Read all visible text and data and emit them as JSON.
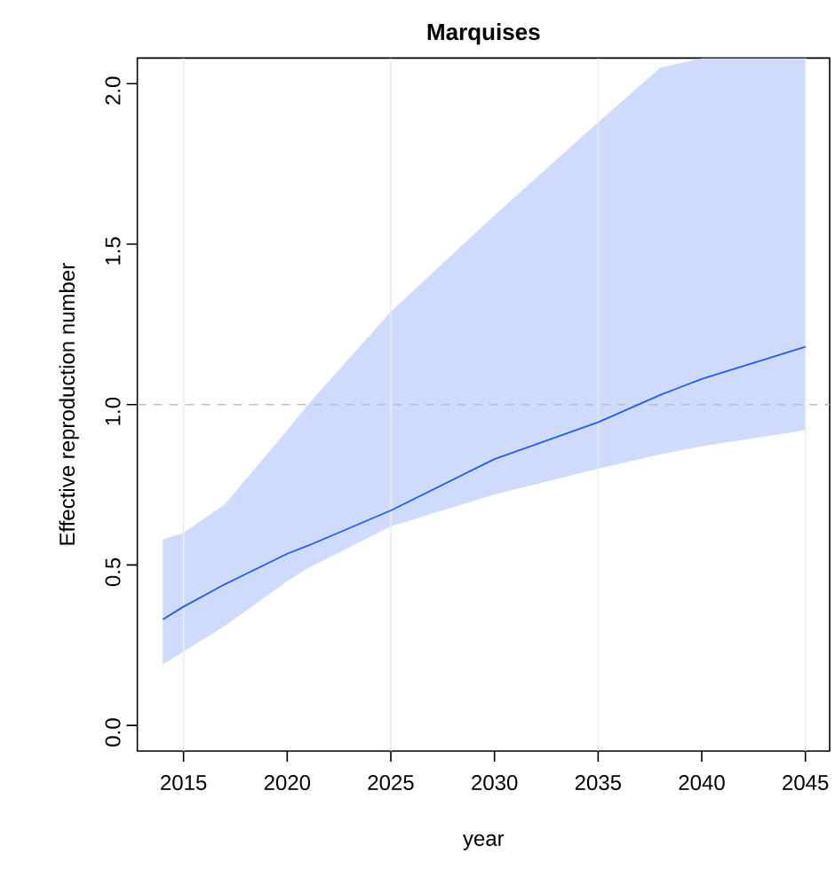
{
  "chart_data": {
    "type": "line",
    "title": "Marquises",
    "xlabel": "year",
    "ylabel": "Effective reproduction number",
    "xlim": [
      2012.77,
      2046.17
    ],
    "ylim": [
      -0.08,
      2.08
    ],
    "xticks": [
      2015,
      2020,
      2025,
      2030,
      2035,
      2040,
      2045
    ],
    "yticks": [
      {
        "value": 0,
        "label": "0.0"
      },
      {
        "value": 0.5,
        "label": "0.5"
      },
      {
        "value": 1,
        "label": "1.0"
      },
      {
        "value": 1.5,
        "label": "1.5"
      },
      {
        "value": 2,
        "label": "2.0"
      }
    ],
    "series": [
      {
        "color": "#1f5cf5",
        "x": [
          2014,
          2015,
          2017,
          2020,
          2021,
          2025,
          2030,
          2035,
          2038,
          2040,
          2045
        ],
        "values": [
          0.33,
          0.37,
          0.44,
          0.535,
          0.56,
          0.67,
          0.83,
          0.945,
          1.03,
          1.08,
          1.18
        ],
        "lower": [
          0.19,
          0.23,
          0.31,
          0.45,
          0.49,
          0.62,
          0.72,
          0.8,
          0.845,
          0.87,
          0.92
        ],
        "upper": [
          0.58,
          0.6,
          0.69,
          0.92,
          1.0,
          1.29,
          1.59,
          1.88,
          2.05,
          2.08,
          2.08
        ]
      }
    ],
    "ref_lines": [
      {
        "axis": "x",
        "value": 2015,
        "color": "#ebebeb",
        "line_style": "solid"
      },
      {
        "axis": "x",
        "value": 2025,
        "color": "#ebebeb",
        "line_style": "solid"
      },
      {
        "axis": "x",
        "value": 2035,
        "color": "#ebebeb",
        "line_style": "solid"
      },
      {
        "axis": "x",
        "value": 2045,
        "color": "#ebebeb",
        "line_style": "solid"
      },
      {
        "axis": "y",
        "value": 1,
        "color": "#bdbdbd",
        "line_style": "dashed"
      }
    ]
  }
}
